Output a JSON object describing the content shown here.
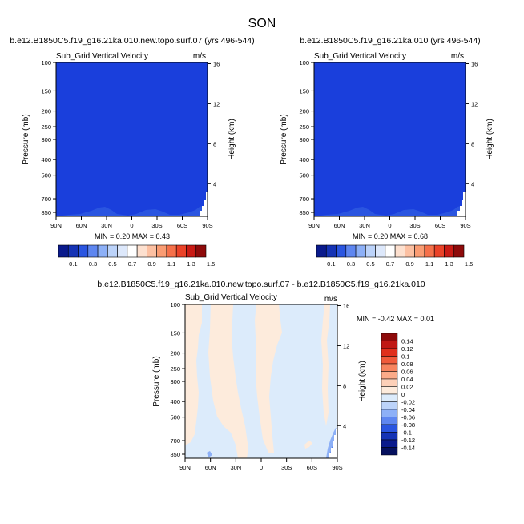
{
  "page": {
    "season": "SON"
  },
  "chart_data": [
    {
      "type": "contour",
      "title": "b.e12.B1850C5.f19_g16.21ka.010.new.topo.surf.07 (yrs 496-544)",
      "variable_label": "Sub_Grid Vertical Velocity",
      "units": "m/s",
      "xlabel": "",
      "ylabel_left": "Pressure (mb)",
      "ylabel_right": "Height (km)",
      "x_ticks": [
        "90N",
        "60N",
        "30N",
        "0",
        "30S",
        "60S",
        "90S"
      ],
      "y_ticks": [
        "100",
        "150",
        "200",
        "250",
        "300",
        "400",
        "500",
        "700",
        "850"
      ],
      "height_ticks": [
        "4",
        "8",
        "12",
        "16"
      ],
      "stats": {
        "min": "0.20",
        "max": "0.43"
      },
      "stats_text": "MIN =  0.20  MAX =  0.43",
      "fill_color": "#1a3fdc",
      "colorbar": {
        "labels": [
          "0.1",
          "0.3",
          "0.5",
          "0.7",
          "0.9",
          "1.1",
          "1.3",
          "1.5"
        ],
        "colors": [
          "#0a1a8c",
          "#1533b5",
          "#2a55e0",
          "#5e86f0",
          "#8db0f7",
          "#bcd3fa",
          "#dde8fb",
          "#ffffff",
          "#fde0cf",
          "#fcc0a2",
          "#fa9c73",
          "#f5704a",
          "#ea4228",
          "#c91a14",
          "#8e0a0a"
        ]
      }
    },
    {
      "type": "contour",
      "title": "b.e12.B1850C5.f19_g16.21ka.010 (yrs 496-544)",
      "variable_label": "Sub_Grid Vertical Velocity",
      "units": "m/s",
      "xlabel": "",
      "ylabel_left": "Pressure (mb)",
      "ylabel_right": "Height (km)",
      "x_ticks": [
        "90N",
        "60N",
        "30N",
        "0",
        "30S",
        "60S",
        "90S"
      ],
      "y_ticks": [
        "100",
        "150",
        "200",
        "250",
        "300",
        "400",
        "500",
        "700",
        "850"
      ],
      "height_ticks": [
        "4",
        "8",
        "12",
        "16"
      ],
      "stats": {
        "min": "0.20",
        "max": "0.68"
      },
      "stats_text": "MIN =  0.20  MAX =  0.68",
      "fill_color": "#1a3fdc",
      "colorbar": {
        "labels": [
          "0.1",
          "0.3",
          "0.5",
          "0.7",
          "0.9",
          "1.1",
          "1.3",
          "1.5"
        ],
        "colors": [
          "#0a1a8c",
          "#1533b5",
          "#2a55e0",
          "#5e86f0",
          "#8db0f7",
          "#bcd3fa",
          "#dde8fb",
          "#ffffff",
          "#fde0cf",
          "#fcc0a2",
          "#fa9c73",
          "#f5704a",
          "#ea4228",
          "#c91a14",
          "#8e0a0a"
        ]
      }
    },
    {
      "type": "contour",
      "title": "b.e12.B1850C5.f19_g16.21ka.010.new.topo.surf.07 - b.e12.B1850C5.f19_g16.21ka.010",
      "variable_label": "Sub_Grid Vertical Velocity",
      "units": "m/s",
      "xlabel": "",
      "ylabel_left": "Pressure (mb)",
      "ylabel_right": "Height (km)",
      "x_ticks": [
        "90N",
        "60N",
        "30N",
        "0",
        "30S",
        "60S",
        "90S"
      ],
      "y_ticks": [
        "100",
        "150",
        "200",
        "250",
        "300",
        "400",
        "500",
        "700",
        "850"
      ],
      "height_ticks": [
        "4",
        "8",
        "12",
        "16"
      ],
      "stats": {
        "min": "-0.42",
        "max": "0.01"
      },
      "stats_text": "MIN = -0.42  MAX =  0.01",
      "colorbar": {
        "labels": [
          "0.14",
          "0.12",
          "0.1",
          "0.08",
          "0.06",
          "0.04",
          "0.02",
          "0",
          "-0.02",
          "-0.04",
          "-0.06",
          "-0.08",
          "-0.1",
          "-0.12",
          "-0.14"
        ],
        "colors": [
          "#8e0a0a",
          "#c01814",
          "#e0301c",
          "#f05a3a",
          "#f7845e",
          "#fbab89",
          "#fdd0b8",
          "#fdebdc",
          "#dcebfb",
          "#bcd3fa",
          "#8db0f7",
          "#5e86f0",
          "#2a55e0",
          "#1533b5",
          "#0a1a8c",
          "#05105e"
        ]
      }
    }
  ]
}
